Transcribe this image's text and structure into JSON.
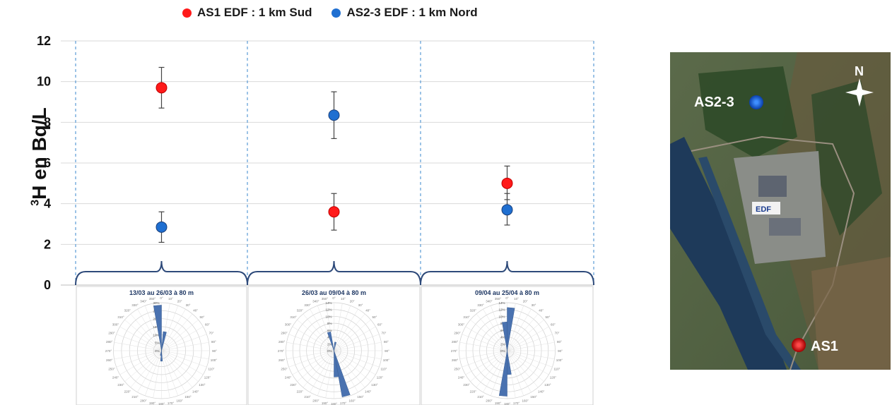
{
  "legend": {
    "series1": "AS1 EDF : 1 km Sud",
    "series2": "AS2-3 EDF : 1 km Nord",
    "color1": "#ff1a1a",
    "color2": "#1f6fd1"
  },
  "ylabel": {
    "sup": "3",
    "main": "H en Bq/L"
  },
  "chart_data": {
    "type": "scatter",
    "ylabel": "3H en Bq/L",
    "ylim": [
      0,
      12
    ],
    "yticks": [
      0,
      2,
      4,
      6,
      8,
      10,
      12
    ],
    "grid": true,
    "legend_position": "top",
    "periods": [
      "13/03 au 26/03 à 80 m",
      "26/03 au 09/04 à 80 m",
      "09/04 au 25/04 à 80 m"
    ],
    "series": [
      {
        "name": "AS1 EDF : 1 km Sud",
        "color": "#ff1a1a",
        "values": [
          9.7,
          3.6,
          5.0
        ],
        "err_low": [
          8.7,
          2.7,
          4.2
        ],
        "err_high": [
          10.7,
          4.5,
          5.85
        ]
      },
      {
        "name": "AS2-3 EDF : 1 km Nord",
        "color": "#1f6fd1",
        "values": [
          2.85,
          8.35,
          3.7
        ],
        "err_low": [
          2.1,
          7.2,
          2.95
        ],
        "err_high": [
          3.6,
          9.5,
          4.5
        ]
      }
    ]
  },
  "roses": [
    {
      "title": "13/03 au 26/03 à 80 m",
      "rings": [
        "0%",
        "5%",
        "10%",
        "15%",
        "20%",
        "25%",
        "30%"
      ],
      "petals": [
        {
          "dir": 355,
          "len": 0.95
        },
        {
          "dir": 10,
          "len": 0.4
        },
        {
          "dir": 180,
          "len": 0.22
        },
        {
          "dir": 190,
          "len": 0.1
        }
      ]
    },
    {
      "title": "26/03 au 09/04 à 80 m",
      "rings": [
        "0%",
        "2%",
        "4%",
        "6%",
        "8%",
        "10%",
        "12%",
        "14%"
      ],
      "petals": [
        {
          "dir": 345,
          "len": 0.4
        },
        {
          "dir": 165,
          "len": 0.98
        },
        {
          "dir": 175,
          "len": 0.55
        },
        {
          "dir": 10,
          "len": 0.18
        }
      ]
    },
    {
      "title": "09/04 au 25/04 à 80 m",
      "rings": [
        "0%",
        "2%",
        "4%",
        "6%",
        "8%",
        "10%",
        "12%",
        "14%"
      ],
      "petals": [
        {
          "dir": 5,
          "len": 0.9
        },
        {
          "dir": 355,
          "len": 0.6
        },
        {
          "dir": 185,
          "len": 0.95
        },
        {
          "dir": 175,
          "len": 0.5
        }
      ]
    }
  ],
  "map": {
    "labels": {
      "north": "N",
      "as23": "AS2-3",
      "as1": "AS1",
      "edf": "EDF"
    }
  }
}
